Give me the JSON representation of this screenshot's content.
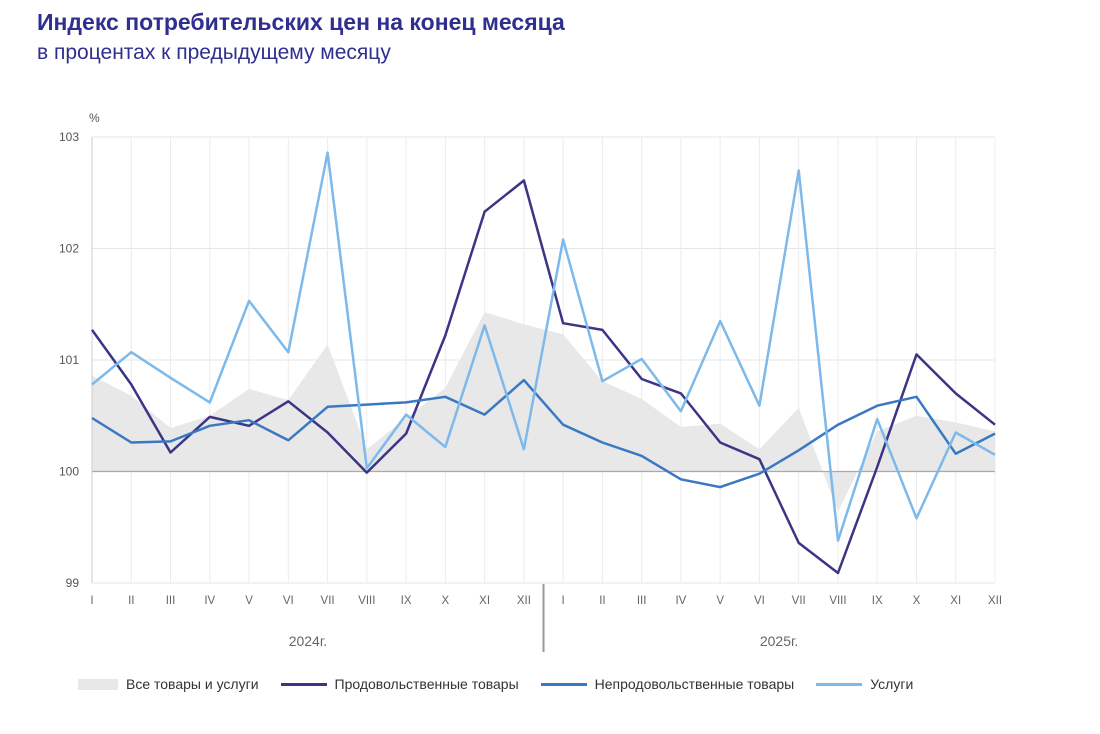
{
  "header": {
    "title": "Индекс потребительских цен на конец месяца",
    "subtitle": "в процентах к предыдущему месяцу"
  },
  "chart_data": {
    "type": "line",
    "unit_label": "%",
    "ylim": [
      99,
      103
    ],
    "yticks": [
      "99",
      "100",
      "101",
      "102",
      "103"
    ],
    "baseline": 100,
    "grid": true,
    "legend_position": "bottom",
    "x": [
      "I",
      "II",
      "III",
      "IV",
      "V",
      "VI",
      "VII",
      "VIII",
      "IX",
      "X",
      "XI",
      "XII",
      "I",
      "II",
      "III",
      "IV",
      "V",
      "VI",
      "VII",
      "VIII",
      "IX",
      "X",
      "XI",
      "XII"
    ],
    "years": [
      "2024г.",
      "2025г."
    ],
    "series": [
      {
        "name": "Все товары и услуги",
        "kind": "area",
        "color": "#e8e8e8",
        "values": [
          100.86,
          100.68,
          100.39,
          100.5,
          100.74,
          100.64,
          101.14,
          100.2,
          100.48,
          100.75,
          101.43,
          101.32,
          101.23,
          100.81,
          100.65,
          100.4,
          100.43,
          100.2,
          100.57,
          99.64,
          100.36,
          100.5,
          100.44,
          100.36
        ]
      },
      {
        "name": "Продовольственные товары",
        "kind": "line",
        "color": "#3a3585",
        "values": [
          101.27,
          100.78,
          100.17,
          100.49,
          100.41,
          100.63,
          100.35,
          99.99,
          100.34,
          101.22,
          102.33,
          102.61,
          101.33,
          101.27,
          100.83,
          100.7,
          100.26,
          100.11,
          99.36,
          99.09,
          100.04,
          101.05,
          100.7,
          100.42
        ]
      },
      {
        "name": "Непродовольственные товары",
        "kind": "line",
        "color": "#3b78c3",
        "values": [
          100.48,
          100.26,
          100.27,
          100.41,
          100.46,
          100.28,
          100.58,
          100.6,
          100.62,
          100.67,
          100.51,
          100.82,
          100.42,
          100.26,
          100.14,
          99.93,
          99.86,
          99.98,
          100.19,
          100.42,
          100.59,
          100.67,
          100.16,
          100.34
        ]
      },
      {
        "name": "Услуги",
        "kind": "line",
        "color": "#7db9ea",
        "values": [
          100.78,
          101.07,
          100.84,
          100.62,
          101.53,
          101.07,
          102.86,
          100.03,
          100.51,
          100.22,
          101.31,
          100.2,
          102.08,
          100.81,
          101.01,
          100.54,
          101.35,
          100.59,
          102.7,
          99.38,
          100.47,
          99.58,
          100.35,
          100.15
        ]
      }
    ]
  }
}
